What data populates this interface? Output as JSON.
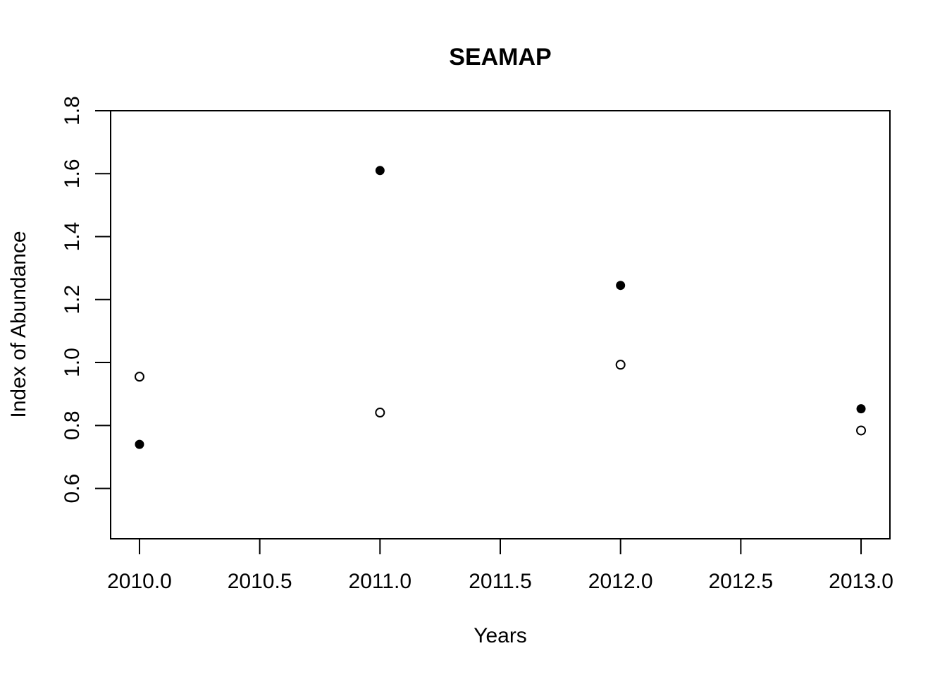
{
  "chart_data": {
    "type": "scatter",
    "title": "SEAMAP",
    "xlabel": "Years",
    "ylabel": "Index of Abundance",
    "xlim": [
      2009.88,
      2013.12
    ],
    "ylim": [
      0.44,
      1.8
    ],
    "x_ticks": [
      2010.0,
      2010.5,
      2011.0,
      2011.5,
      2012.0,
      2012.5,
      2013.0
    ],
    "x_tick_labels": [
      "2010.0",
      "2010.5",
      "2011.0",
      "2011.5",
      "2012.0",
      "2012.5",
      "2013.0"
    ],
    "y_ticks": [
      0.6,
      0.8,
      1.0,
      1.2,
      1.4,
      1.6,
      1.8
    ],
    "y_tick_labels": [
      "0.6",
      "0.8",
      "1.0",
      "1.2",
      "1.4",
      "1.6",
      "1.8"
    ],
    "grid": false,
    "legend": "none",
    "series": [
      {
        "marker": "filled-circle",
        "color": "#000000",
        "x": [
          2010,
          2011,
          2012,
          2013
        ],
        "y": [
          0.74,
          1.61,
          1.245,
          0.853
        ]
      },
      {
        "marker": "open-circle",
        "color": "#000000",
        "x": [
          2010,
          2011,
          2012,
          2013
        ],
        "y": [
          0.955,
          0.841,
          0.993,
          0.784
        ]
      }
    ]
  }
}
